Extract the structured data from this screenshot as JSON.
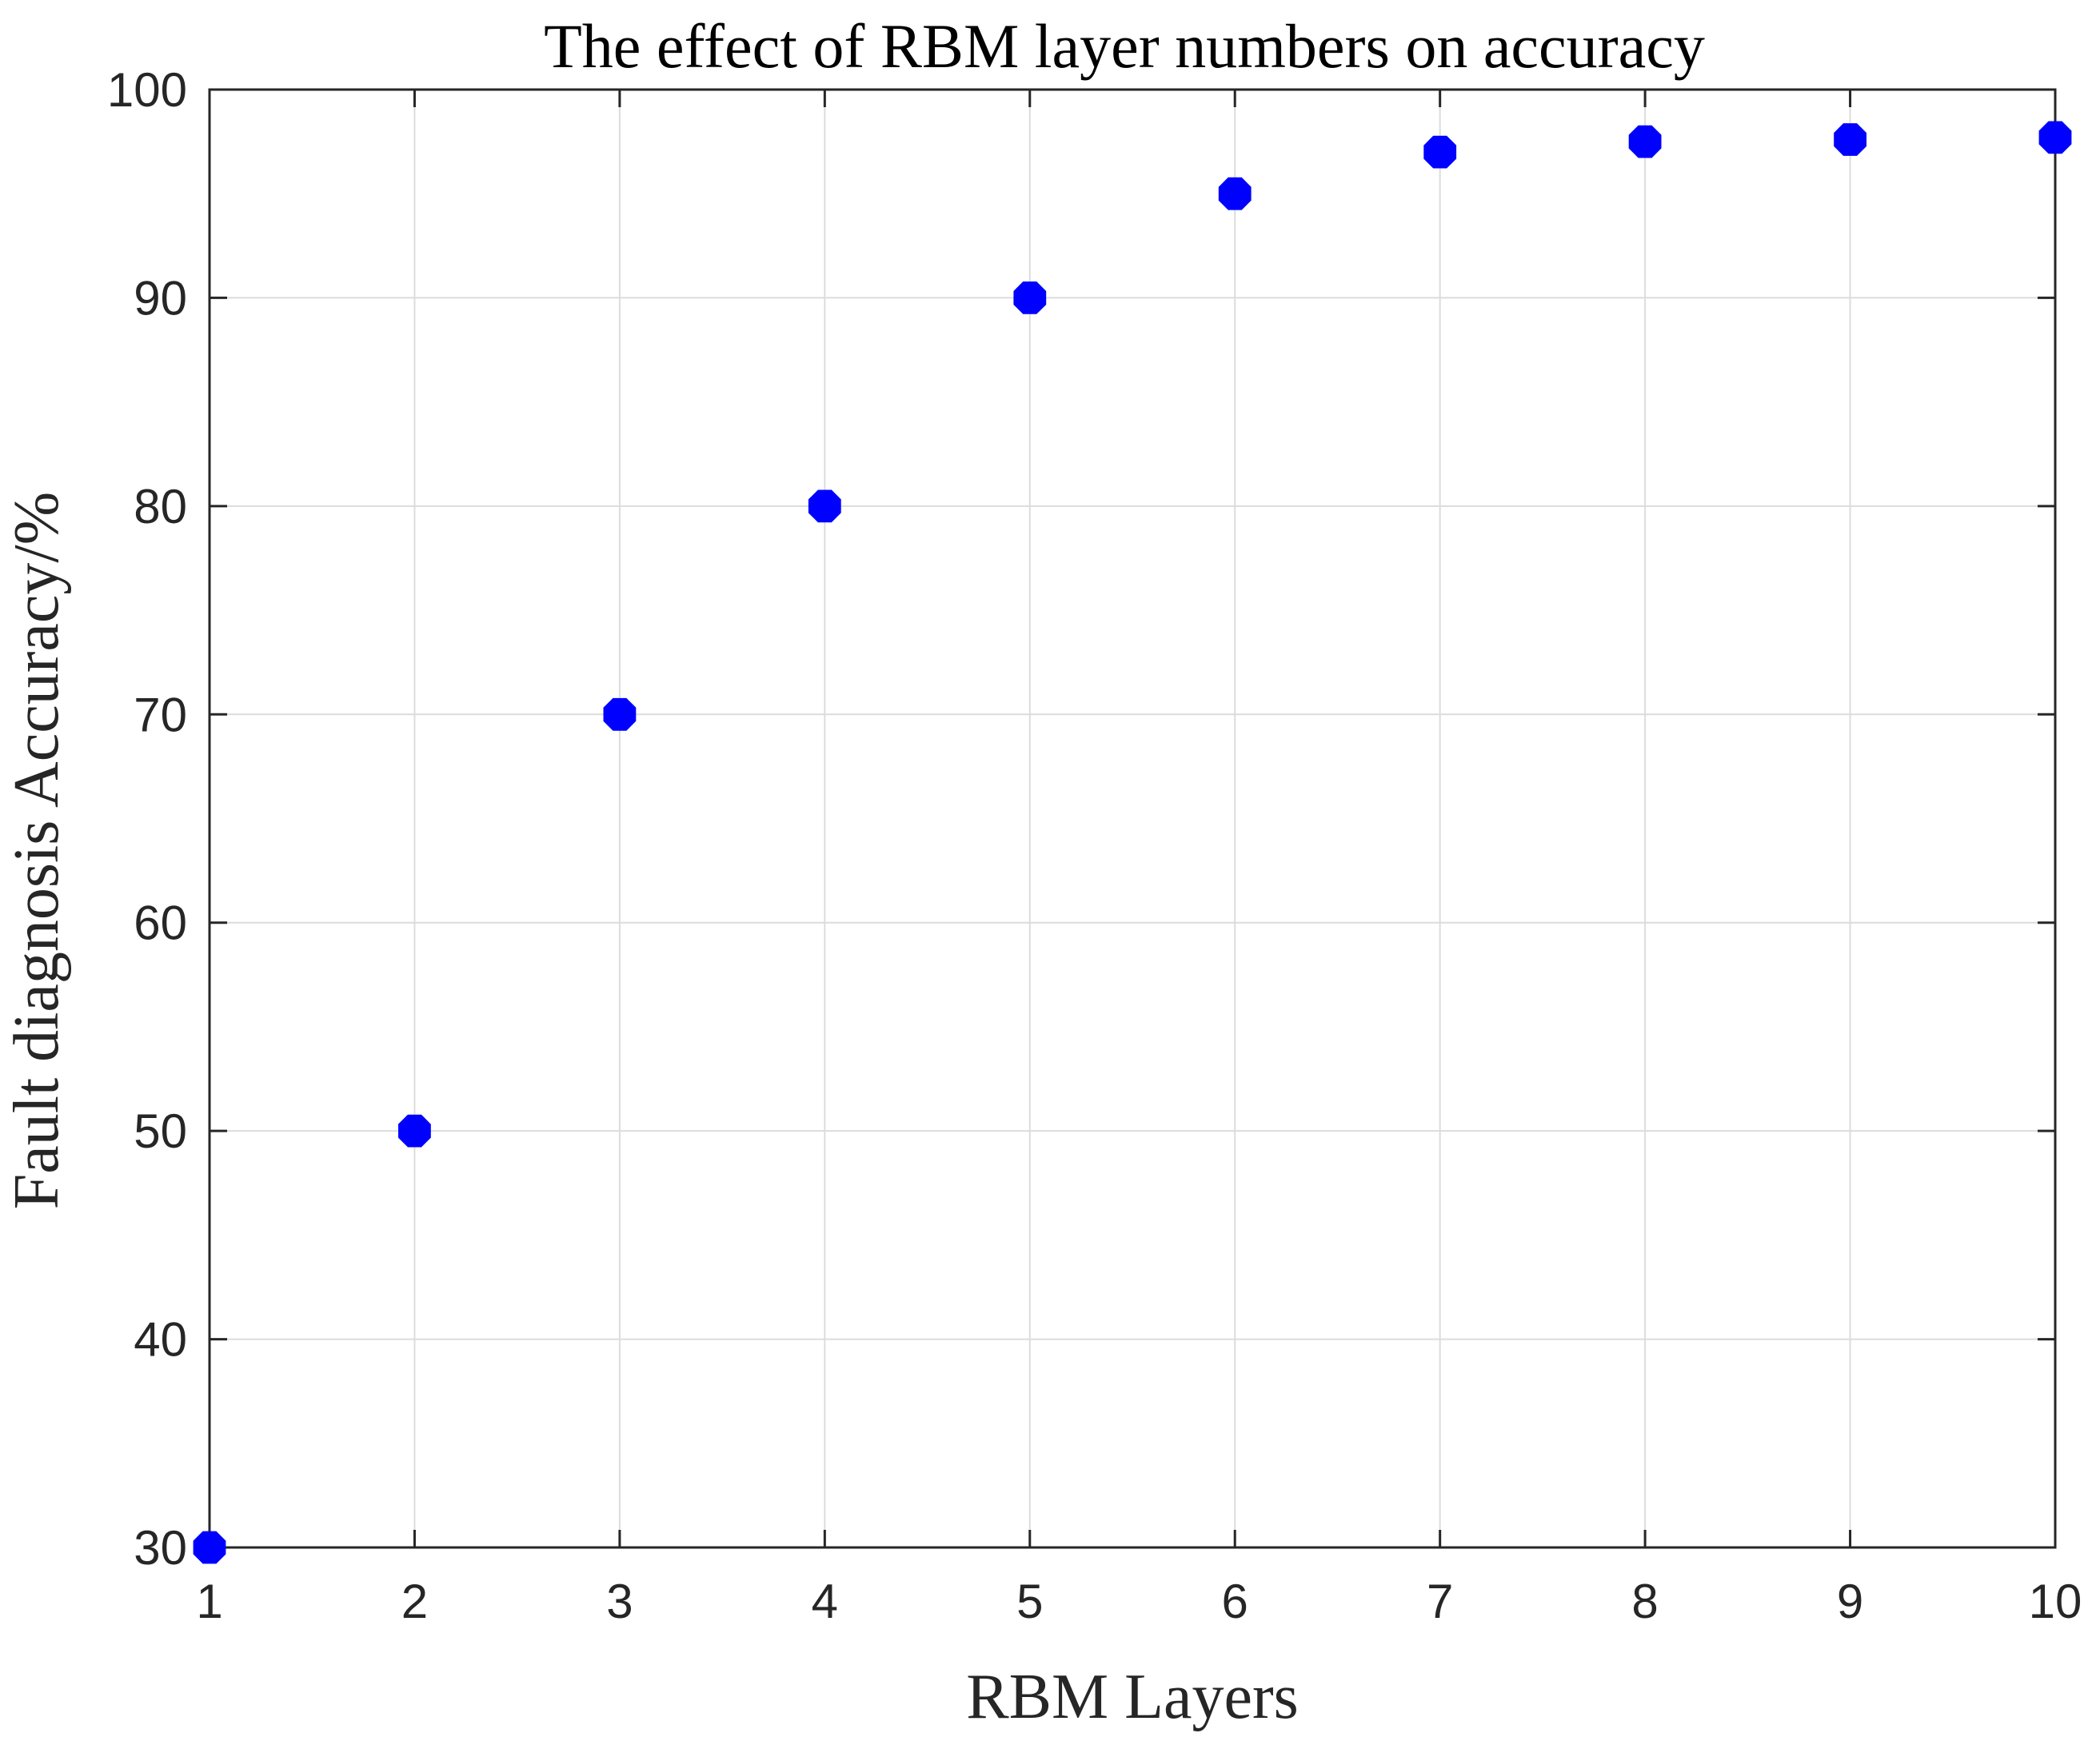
{
  "chart_data": {
    "type": "scatter",
    "title": "The effect of RBM layer numbers on accuracy",
    "xlabel": "RBM Layers",
    "ylabel": "Fault diagnosis Accuracy/%",
    "xlim": [
      1,
      10
    ],
    "ylim": [
      30,
      100
    ],
    "xticks": [
      1,
      2,
      3,
      4,
      5,
      6,
      7,
      8,
      9,
      10
    ],
    "yticks": [
      30,
      40,
      50,
      60,
      70,
      80,
      90,
      100
    ],
    "grid": true,
    "legend": "none",
    "marker": "octagon",
    "marker_color": "#0000ff",
    "series": [
      {
        "x": [
          1,
          2,
          3,
          4,
          5,
          6,
          7,
          8,
          9,
          10
        ],
        "y": [
          30,
          50,
          70,
          80,
          90,
          95,
          97,
          97.5,
          97.6,
          97.7
        ]
      }
    ]
  }
}
